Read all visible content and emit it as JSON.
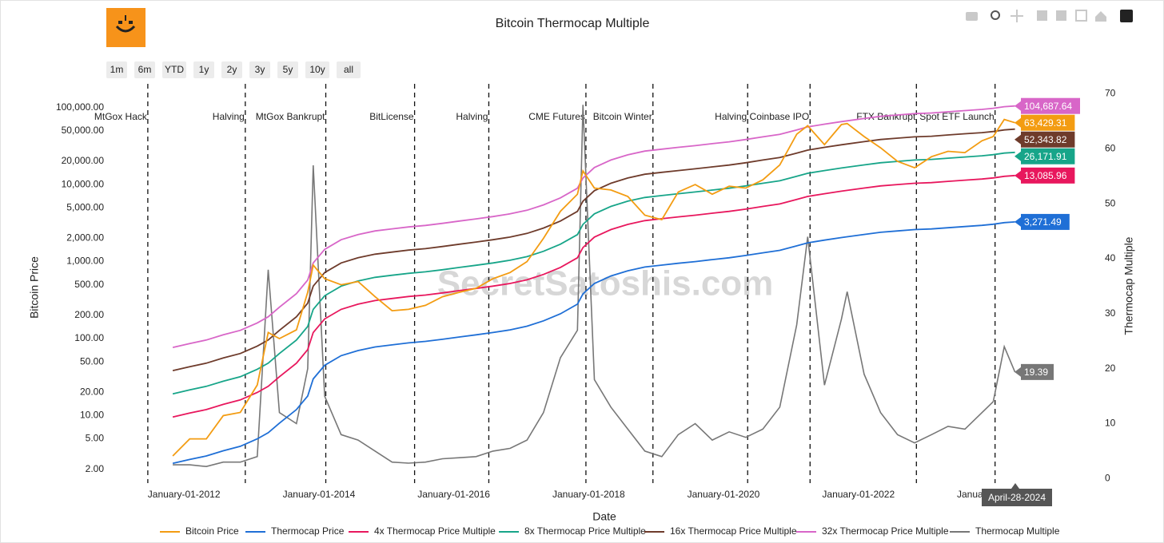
{
  "chart_data": {
    "type": "line",
    "title": "Bitcoin Thermocap Multiple",
    "watermark": "SecretSatoshis.com",
    "range_buttons": [
      "1m",
      "6m",
      "YTD",
      "1y",
      "2y",
      "3y",
      "5y",
      "10y",
      "all"
    ],
    "x_label": "Date",
    "y_label": "Bitcoin Price",
    "y2_label": "Thermocap Multiple",
    "hover_label": "April-28-2024",
    "log_y": true,
    "xlim": [
      "2010-11-15",
      "2025-06-15"
    ],
    "xticks": [
      {
        "value": "2012-01-01",
        "label": "January-01-2012"
      },
      {
        "value": "2014-01-01",
        "label": "January-01-2014"
      },
      {
        "value": "2016-01-01",
        "label": "January-01-2016"
      },
      {
        "value": "2018-01-01",
        "label": "January-01-2018"
      },
      {
        "value": "2020-01-01",
        "label": "January-01-2020"
      },
      {
        "value": "2022-01-01",
        "label": "January-01-2022"
      },
      {
        "value": "2024-01-01",
        "label": "January-01-2024"
      }
    ],
    "ylim": [
      1.5,
      180000
    ],
    "yticks": [
      {
        "value": 2,
        "label": "2.00"
      },
      {
        "value": 5,
        "label": "5.00"
      },
      {
        "value": 10,
        "label": "10.00"
      },
      {
        "value": 20,
        "label": "20.00"
      },
      {
        "value": 50,
        "label": "50.00"
      },
      {
        "value": 100,
        "label": "100.00"
      },
      {
        "value": 200,
        "label": "200.00"
      },
      {
        "value": 500,
        "label": "500.00"
      },
      {
        "value": 1000,
        "label": "1,000.00"
      },
      {
        "value": 2000,
        "label": "2,000.00"
      },
      {
        "value": 5000,
        "label": "5,000.00"
      },
      {
        "value": 10000,
        "label": "10,000.00"
      },
      {
        "value": 20000,
        "label": "20,000.00"
      },
      {
        "value": 50000,
        "label": "50,000.00"
      },
      {
        "value": 100000,
        "label": "100,000.00"
      }
    ],
    "y2lim": [
      -0.1,
      71.1
    ],
    "y2ticks": [
      0,
      10,
      20,
      30,
      40,
      50,
      60,
      70
    ],
    "events": [
      {
        "date": "2011-06-19",
        "label": "MtGox Hack"
      },
      {
        "date": "2012-11-28",
        "label": "Halving"
      },
      {
        "date": "2014-02-07",
        "label": "MtGox Bankrupt"
      },
      {
        "date": "2015-06-03",
        "label": "BitLicense"
      },
      {
        "date": "2016-07-09",
        "label": "Halving"
      },
      {
        "date": "2017-12-17",
        "label": "CME Futures"
      },
      {
        "date": "2018-12-15",
        "label": "Bitcoin Winter"
      },
      {
        "date": "2020-05-11",
        "label": "Halving"
      },
      {
        "date": "2021-04-14",
        "label": "Coinbase IPO"
      },
      {
        "date": "2022-11-11",
        "label": "FTX Bankrupt"
      },
      {
        "date": "2024-01-11",
        "label": "Spot ETF Launch"
      }
    ],
    "x": [
      "2011-11-01",
      "2012-02-01",
      "2012-05-01",
      "2012-08-01",
      "2012-11-01",
      "2013-02-01",
      "2013-04-01",
      "2013-06-01",
      "2013-09-01",
      "2013-11-01",
      "2013-12-01",
      "2014-02-01",
      "2014-05-01",
      "2014-08-01",
      "2014-11-01",
      "2015-02-01",
      "2015-05-01",
      "2015-08-01",
      "2015-11-01",
      "2016-02-01",
      "2016-05-01",
      "2016-08-01",
      "2016-11-01",
      "2017-02-01",
      "2017-05-01",
      "2017-08-01",
      "2017-11-01",
      "2017-12-01",
      "2018-02-01",
      "2018-05-01",
      "2018-08-01",
      "2018-11-01",
      "2019-02-01",
      "2019-05-01",
      "2019-08-01",
      "2019-11-01",
      "2020-02-01",
      "2020-05-01",
      "2020-08-01",
      "2020-11-01",
      "2021-02-01",
      "2021-04-01",
      "2021-07-01",
      "2021-10-01",
      "2021-11-01",
      "2022-02-01",
      "2022-05-01",
      "2022-08-01",
      "2022-11-01",
      "2023-02-01",
      "2023-05-01",
      "2023-08-01",
      "2023-11-01",
      "2024-01-01",
      "2024-03-01",
      "2024-04-28"
    ],
    "series": [
      {
        "name": "Bitcoin Price",
        "color": "#f39c12",
        "end_label": "63,429.31",
        "values": [
          3,
          5,
          5,
          10,
          11,
          25,
          120,
          100,
          130,
          400,
          900,
          600,
          500,
          550,
          350,
          230,
          240,
          270,
          350,
          400,
          450,
          600,
          720,
          1000,
          2000,
          4500,
          7500,
          15000,
          9000,
          8500,
          7000,
          4000,
          3500,
          8000,
          10000,
          7500,
          9500,
          9000,
          11500,
          18000,
          45000,
          58000,
          33000,
          60000,
          62000,
          42000,
          30000,
          20000,
          16500,
          23000,
          27000,
          26000,
          37000,
          42000,
          70000,
          63429.31
        ]
      },
      {
        "name": "Thermocap Price",
        "color": "#1f6fd6",
        "end_label": "3,271.49",
        "values": [
          2.4,
          2.7,
          3,
          3.5,
          4,
          5,
          6,
          8,
          12,
          18,
          30,
          45,
          60,
          70,
          78,
          83,
          88,
          92,
          98,
          105,
          112,
          120,
          130,
          145,
          170,
          210,
          280,
          380,
          520,
          650,
          760,
          850,
          900,
          950,
          1000,
          1060,
          1120,
          1200,
          1300,
          1400,
          1600,
          1750,
          1900,
          2050,
          2100,
          2250,
          2400,
          2500,
          2600,
          2650,
          2750,
          2850,
          2950,
          3050,
          3200,
          3271.49
        ]
      },
      {
        "name": "4x Thermocap Price Multiple",
        "color": "#e8175d",
        "end_label": "13,085.96",
        "values": [
          9.6,
          10.8,
          12,
          14,
          16,
          20,
          24,
          32,
          48,
          72,
          120,
          180,
          240,
          280,
          312,
          332,
          352,
          368,
          392,
          420,
          448,
          480,
          520,
          580,
          680,
          840,
          1120,
          1520,
          2080,
          2600,
          3040,
          3400,
          3600,
          3800,
          4000,
          4240,
          4480,
          4800,
          5200,
          5600,
          6400,
          7000,
          7600,
          8200,
          8400,
          9000,
          9600,
          10000,
          10400,
          10600,
          11000,
          11400,
          11800,
          12200,
          12800,
          13085.96
        ]
      },
      {
        "name": "8x Thermocap Price Multiple",
        "color": "#17a589",
        "end_label": "26,171.91",
        "values": [
          19.2,
          21.6,
          24,
          28,
          32,
          40,
          48,
          64,
          96,
          144,
          240,
          360,
          480,
          560,
          624,
          664,
          704,
          736,
          784,
          840,
          896,
          960,
          1040,
          1160,
          1360,
          1680,
          2240,
          3040,
          4160,
          5200,
          6080,
          6800,
          7200,
          7600,
          8000,
          8480,
          8960,
          9600,
          10400,
          11200,
          12800,
          14000,
          15200,
          16400,
          16800,
          18000,
          19200,
          20000,
          20800,
          21200,
          22000,
          22800,
          23600,
          24400,
          25600,
          26171.91
        ]
      },
      {
        "name": "16x Thermocap Price Multiple",
        "color": "#6e3b2b",
        "end_label": "52,343.82",
        "values": [
          38.4,
          43.2,
          48,
          56,
          64,
          80,
          96,
          128,
          192,
          288,
          480,
          720,
          960,
          1120,
          1248,
          1328,
          1408,
          1472,
          1568,
          1680,
          1792,
          1920,
          2080,
          2320,
          2720,
          3360,
          4480,
          6080,
          8320,
          10400,
          12160,
          13600,
          14400,
          15200,
          16000,
          16960,
          17920,
          19200,
          20800,
          22400,
          25600,
          28000,
          30400,
          32800,
          33600,
          36000,
          38400,
          40000,
          41600,
          42400,
          44000,
          45600,
          47200,
          48800,
          51200,
          52343.82
        ]
      },
      {
        "name": "32x Thermocap Price Multiple",
        "color": "#d866c8",
        "end_label": "104,687.64",
        "values": [
          76.8,
          86.4,
          96,
          112,
          128,
          160,
          192,
          256,
          384,
          576,
          960,
          1440,
          1920,
          2240,
          2496,
          2656,
          2816,
          2944,
          3136,
          3360,
          3584,
          3840,
          4160,
          4640,
          5440,
          6720,
          8960,
          12160,
          16640,
          20800,
          24320,
          27200,
          28800,
          30400,
          32000,
          33920,
          35840,
          38400,
          41600,
          44800,
          51200,
          56000,
          60800,
          65600,
          67200,
          72000,
          76800,
          80000,
          83200,
          84800,
          88000,
          91200,
          94400,
          97600,
          102400,
          104687.64
        ]
      },
      {
        "name": "Thermocap Multiple",
        "color": "#777777",
        "axis": "y2",
        "values": [
          2.5,
          2.5,
          2.2,
          3,
          3,
          4,
          38,
          12,
          10,
          20,
          57,
          15,
          8,
          7,
          5,
          3,
          2.8,
          3,
          3.6,
          3.8,
          4,
          5,
          5.5,
          7,
          12,
          22,
          27,
          68,
          18,
          13,
          9,
          5,
          4,
          8,
          10,
          7,
          8.5,
          7.5,
          9,
          13,
          28,
          44,
          17,
          29,
          34,
          19,
          12,
          8,
          6.5,
          8,
          9.5,
          9,
          12,
          14,
          24,
          19.39
        ]
      }
    ]
  }
}
